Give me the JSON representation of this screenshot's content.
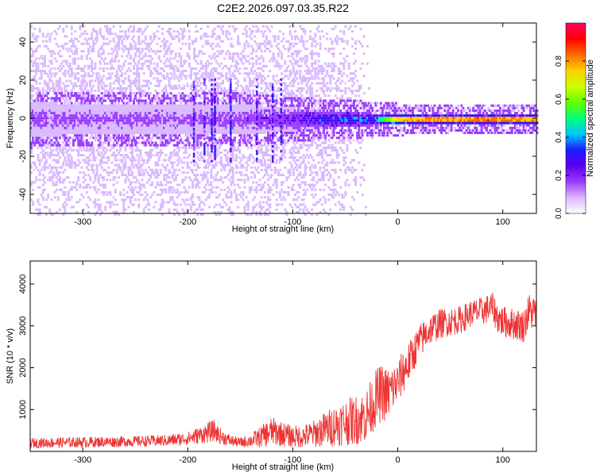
{
  "title": "C2E2.2026.097.03.35.R22",
  "chart_data": [
    {
      "type": "heatmap",
      "xlabel": "Height of straight line (km)",
      "ylabel": "Frequency (Hz)",
      "xlim": [
        -350,
        132
      ],
      "ylim": [
        -50,
        50
      ],
      "xticks": [
        -300,
        -200,
        -100,
        0,
        100
      ],
      "yticks": [
        -40,
        -20,
        0,
        20,
        40
      ],
      "grid": false,
      "colorbar": {
        "label": "Normalized spectral amplitude",
        "range": [
          0,
          1
        ],
        "ticks": [
          "0.0",
          "0.2",
          "0.4",
          "0.6",
          "0.8"
        ],
        "tick_values": [
          0,
          0.2,
          0.4,
          0.6,
          0.8
        ],
        "colors": [
          "#ffffff",
          "#d9b8ff",
          "#9a3cff",
          "#5a00f0",
          "#1c1cff",
          "#00c8ff",
          "#00ff7a",
          "#66ff00",
          "#ccff00",
          "#ffd000",
          "#ff6a00",
          "#ff0000",
          "#ff0066"
        ]
      },
      "signal_band": {
        "x": [
          -350,
          -300,
          -250,
          -200,
          -150,
          -100,
          -80,
          -60,
          -40,
          -20,
          0,
          20,
          50,
          80,
          100,
          132
        ],
        "half_width_hz": [
          9,
          8,
          8,
          8,
          8,
          6,
          5,
          4,
          4,
          3,
          2.5,
          2,
          2,
          2,
          2,
          2
        ],
        "peak_amplitude": [
          0.22,
          0.2,
          0.2,
          0.2,
          0.22,
          0.3,
          0.4,
          0.45,
          0.45,
          0.5,
          0.8,
          0.85,
          0.85,
          0.9,
          0.88,
          0.85
        ]
      },
      "noise_extent_hz": 50,
      "noise_fades_at_km": -70,
      "vertical_bursts_km": [
        -195,
        -185,
        -178,
        -175,
        -160,
        -135,
        -120,
        -112
      ]
    },
    {
      "type": "line",
      "xlabel": "Height of straight line (km)",
      "ylabel": "SNR (10 * v/v)",
      "xlim": [
        -350,
        132
      ],
      "ylim": [
        0,
        4550
      ],
      "xticks": [
        -300,
        -200,
        -100,
        0,
        100
      ],
      "yticks": [
        1000,
        2000,
        3000,
        4000
      ],
      "grid": false,
      "color": "#ee3333",
      "x": [
        -350,
        -300,
        -250,
        -220,
        -200,
        -190,
        -180,
        -175,
        -170,
        -160,
        -150,
        -140,
        -130,
        -120,
        -110,
        -100,
        -90,
        -80,
        -70,
        -60,
        -50,
        -40,
        -30,
        -20,
        -15,
        -10,
        -5,
        0,
        5,
        10,
        15,
        20,
        30,
        40,
        50,
        60,
        70,
        80,
        90,
        95,
        100,
        110,
        120,
        125,
        132
      ],
      "y": [
        200,
        220,
        240,
        260,
        310,
        380,
        450,
        500,
        380,
        260,
        210,
        260,
        350,
        480,
        420,
        350,
        360,
        420,
        520,
        620,
        700,
        750,
        850,
        1300,
        1400,
        1350,
        1500,
        1650,
        1900,
        2100,
        2350,
        2600,
        2900,
        3050,
        3100,
        3150,
        3300,
        3350,
        3450,
        3200,
        3100,
        3050,
        3000,
        3350,
        3300
      ],
      "noise_amplitude": [
        120,
        130,
        130,
        140,
        160,
        200,
        250,
        260,
        200,
        140,
        120,
        160,
        260,
        350,
        300,
        260,
        280,
        330,
        420,
        500,
        560,
        600,
        650,
        700,
        700,
        650,
        600,
        500,
        550,
        500,
        450,
        420,
        380,
        360,
        340,
        330,
        330,
        340,
        360,
        380,
        380,
        380,
        400,
        450,
        450
      ]
    }
  ]
}
